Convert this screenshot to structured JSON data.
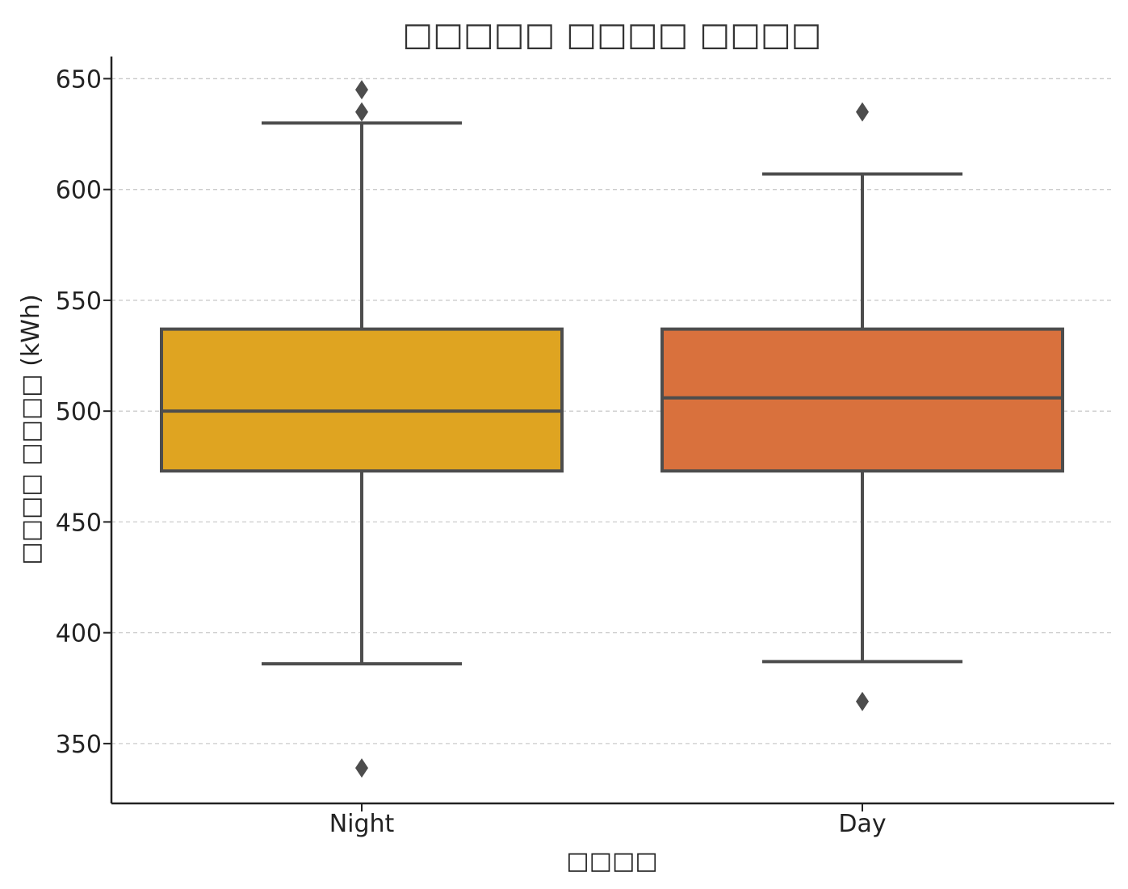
{
  "chart_data": {
    "type": "box",
    "title": "□□□□□ □□□□ □□□□",
    "xlabel": "□□□□",
    "ylabel": "□□□□ □□□□ (kWh)",
    "ylim": [
      323,
      661
    ],
    "yticks": [
      350,
      400,
      450,
      500,
      550,
      600,
      650
    ],
    "grid": "horizontal-dashed",
    "categories": [
      "Night",
      "Day"
    ],
    "boxes": [
      {
        "category": "Night",
        "whisker_low": 386,
        "q1": 473,
        "median": 500,
        "q3": 537,
        "whisker_high": 630,
        "outliers": [
          645,
          635,
          339
        ],
        "color": "#DFA421"
      },
      {
        "category": "Day",
        "whisker_low": 387,
        "q1": 473,
        "median": 506,
        "q3": 537,
        "whisker_high": 607,
        "outliers": [
          635,
          369
        ],
        "color": "#D9713D"
      }
    ],
    "line_color": "#4d4d4d",
    "grid_color": "#cccccc"
  }
}
